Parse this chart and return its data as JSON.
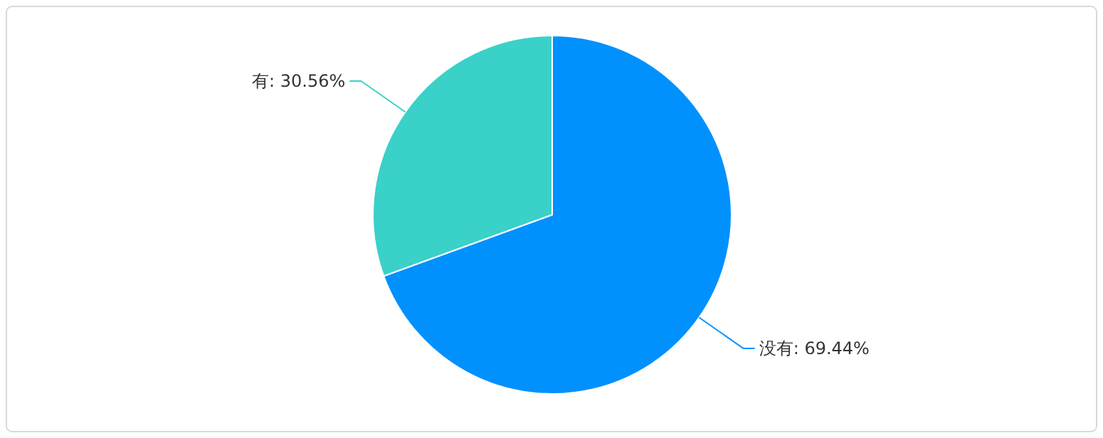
{
  "chart_data": {
    "type": "pie",
    "categories": [
      "没有",
      "有"
    ],
    "values": [
      69.44,
      30.56
    ],
    "colors": [
      "#0091ff",
      "#3ad1c8"
    ],
    "value_labels": [
      ": 69.44%",
      ": 30.56%"
    ]
  }
}
